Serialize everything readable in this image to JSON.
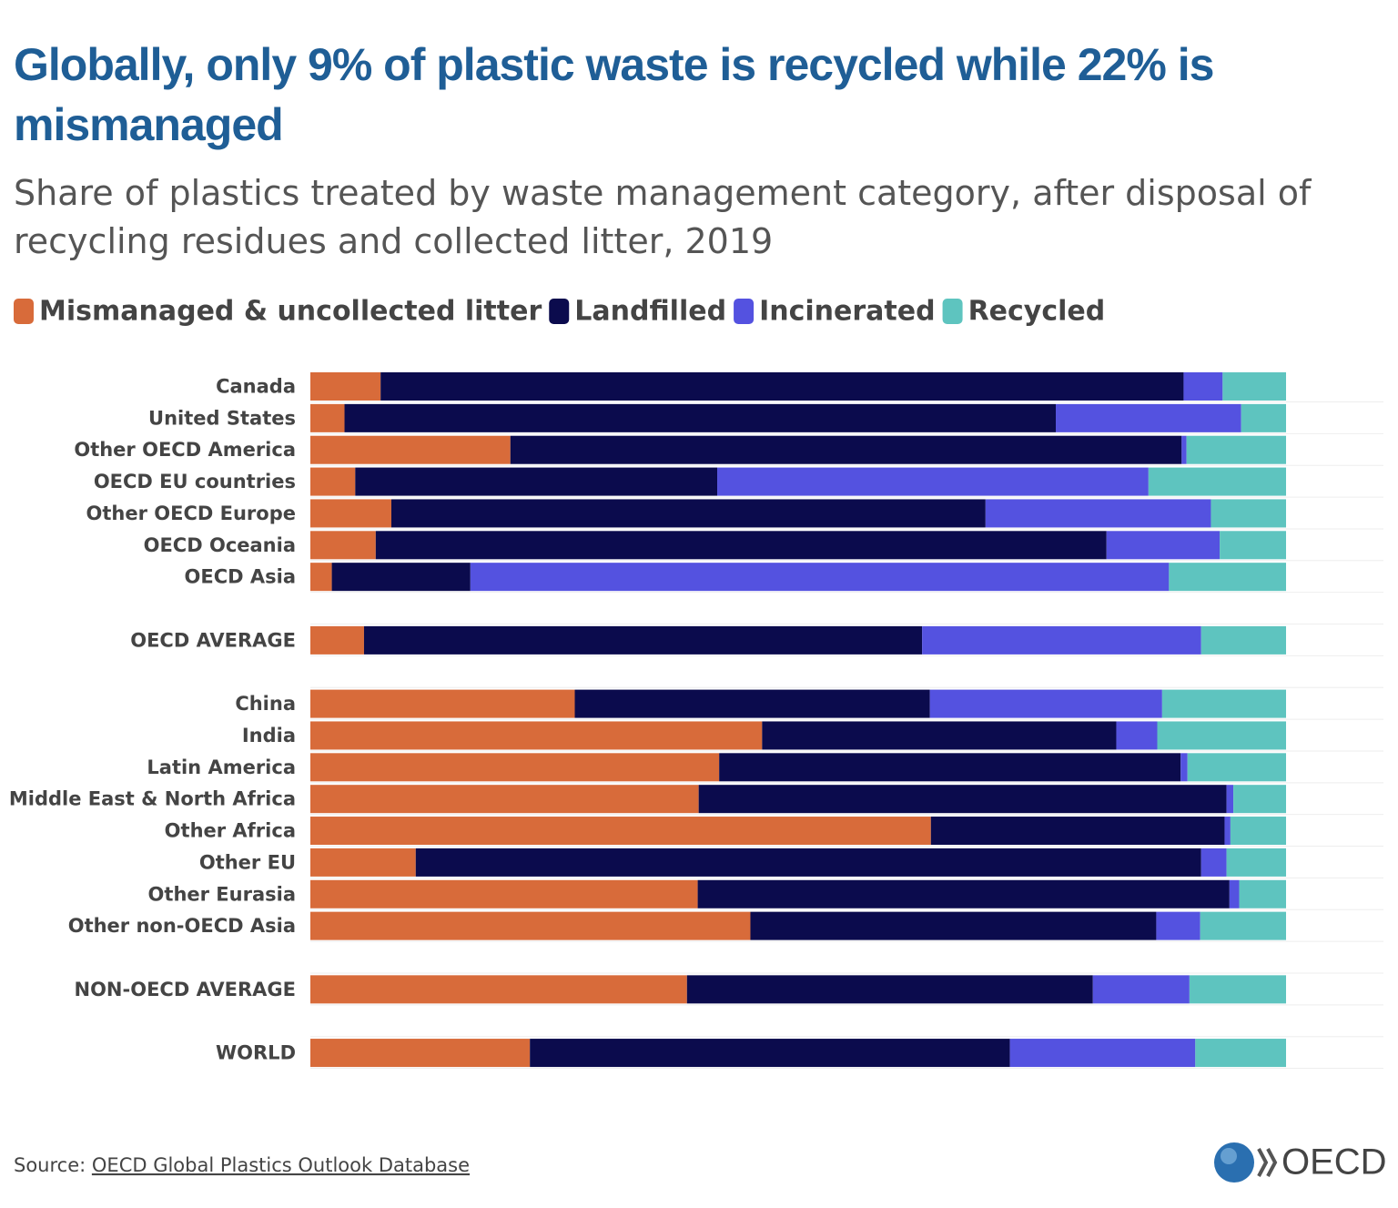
{
  "chart_data": {
    "type": "stacked-bar-horizontal",
    "title": "Globally, only 9% of plastic waste is recycled while 22% is mismanaged",
    "subtitle": "Share of plastics treated by waste management category, after disposal of recycling residues and collected litter, 2019",
    "categories": [
      "Canada",
      "United States",
      "Other OECD America",
      "OECD EU countries",
      "Other OECD Europe",
      "OECD Oceania",
      "OECD Asia",
      null,
      "OECD AVERAGE",
      null,
      "China",
      "India",
      "Latin America",
      "Middle East & North Africa",
      "Other Africa",
      "Other EU",
      "Other Eurasia",
      "Other non-OECD Asia",
      null,
      "NON-OECD AVERAGE",
      null,
      "WORLD"
    ],
    "series": [
      {
        "name": "Mismanaged & uncollected litter",
        "color": "#d86b3a",
        "values": [
          7.2,
          3.5,
          20.5,
          4.6,
          8.3,
          6.7,
          2.2,
          null,
          5.5,
          null,
          27.1,
          46.3,
          41.9,
          39.8,
          63.6,
          10.8,
          39.7,
          45.1,
          null,
          38.6,
          null,
          22.5
        ]
      },
      {
        "name": "Landfilled",
        "color": "#0b0b4d",
        "values": [
          82.3,
          72.9,
          68.8,
          37.1,
          60.9,
          74.9,
          14.2,
          null,
          57.2,
          null,
          36.4,
          36.3,
          47.3,
          54.1,
          30.1,
          80.5,
          54.5,
          41.6,
          null,
          41.6,
          null,
          49.2
        ]
      },
      {
        "name": "Incinerated",
        "color": "#5452e0",
        "values": [
          4.0,
          19.0,
          0.5,
          44.2,
          23.1,
          11.6,
          71.6,
          null,
          28.6,
          null,
          23.8,
          4.2,
          0.7,
          0.7,
          0.6,
          2.6,
          1.0,
          4.5,
          null,
          9.9,
          null,
          19.0
        ]
      },
      {
        "name": "Recycled",
        "color": "#5ec4bf",
        "values": [
          6.5,
          4.6,
          10.2,
          14.1,
          7.7,
          6.8,
          12.0,
          null,
          8.7,
          null,
          12.7,
          13.2,
          10.1,
          5.4,
          5.7,
          6.1,
          4.8,
          8.8,
          null,
          9.9,
          null,
          9.3
        ]
      }
    ],
    "xlim": [
      0,
      100
    ],
    "source_prefix": "Source:",
    "source_link": "OECD Global Plastics Outlook Database",
    "logo": "OECD"
  }
}
